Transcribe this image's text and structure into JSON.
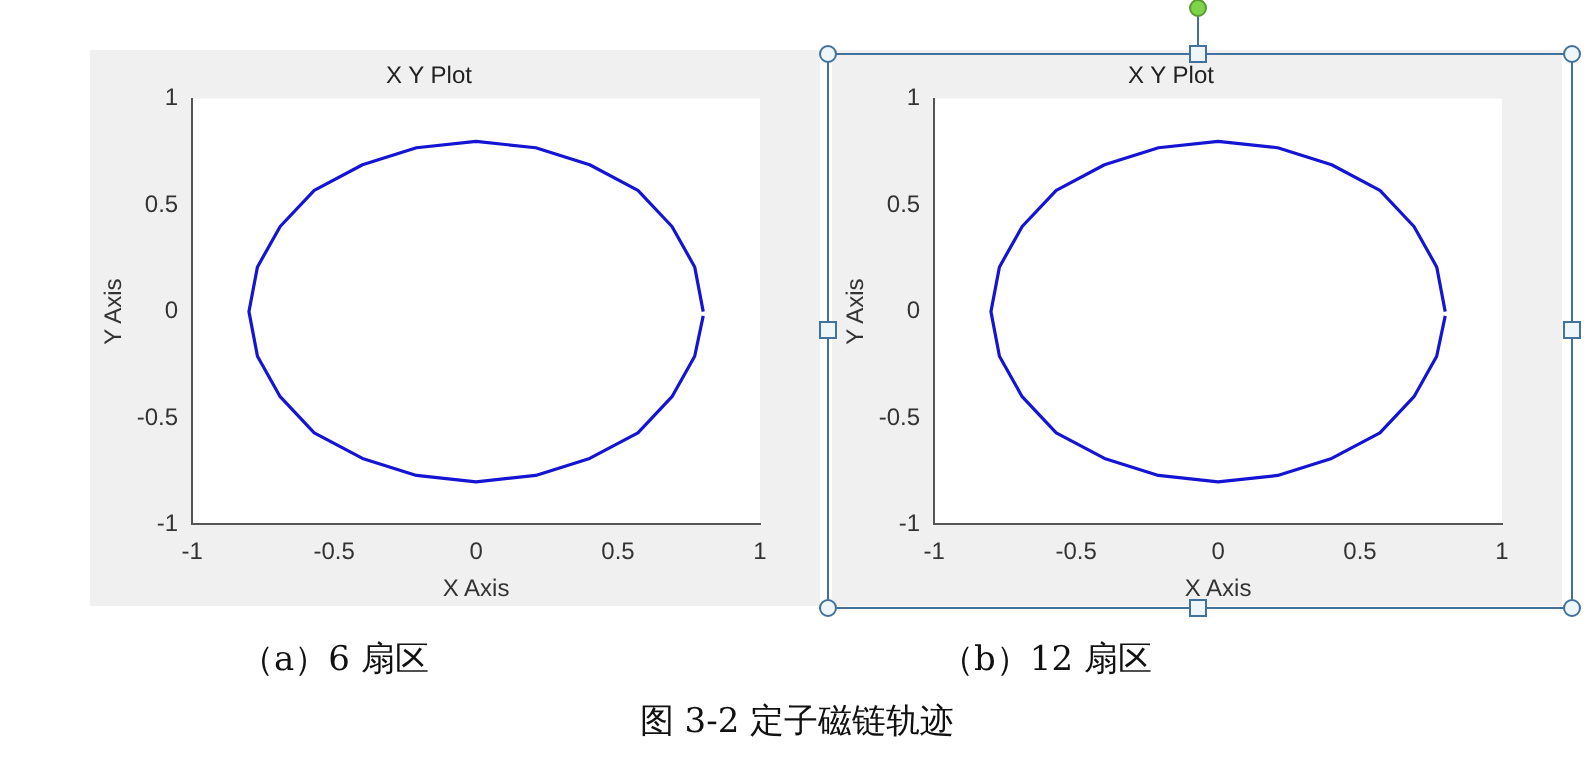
{
  "chart_data": [
    {
      "type": "line",
      "title": "X Y Plot",
      "xlabel": "X Axis",
      "ylabel": "Y Axis",
      "xlim": [
        -1,
        1
      ],
      "ylim": [
        -1,
        1
      ],
      "xticks": [
        -1,
        -0.5,
        0,
        0.5,
        1
      ],
      "yticks": [
        -1,
        -0.5,
        0,
        0.5,
        1
      ],
      "grid": false,
      "legend": false,
      "marker": "none",
      "line_style": "solid",
      "annotations": [
        "（a）6 扇区"
      ],
      "series": [
        {
          "color": "#1414d2",
          "x": [
            0.8,
            0.77,
            0.69,
            0.57,
            0.4,
            0.21,
            0,
            -0.21,
            -0.4,
            -0.57,
            -0.69,
            -0.77,
            -0.8,
            -0.77,
            -0.69,
            -0.57,
            -0.4,
            -0.21,
            0,
            0.21,
            0.4,
            0.57,
            0.69,
            0.77,
            0.8
          ],
          "values": [
            0,
            0.21,
            0.4,
            0.57,
            0.69,
            0.77,
            0.8,
            0.77,
            0.69,
            0.57,
            0.4,
            0.21,
            0,
            -0.21,
            -0.4,
            -0.57,
            -0.69,
            -0.77,
            -0.8,
            -0.77,
            -0.69,
            -0.57,
            -0.4,
            -0.21,
            -0.02
          ]
        }
      ]
    },
    {
      "type": "line",
      "title": "X Y Plot",
      "xlabel": "X Axis",
      "ylabel": "Y Axis",
      "xlim": [
        -1,
        1
      ],
      "ylim": [
        -1,
        1
      ],
      "xticks": [
        -1,
        -0.5,
        0,
        0.5,
        1
      ],
      "yticks": [
        -1,
        -0.5,
        0,
        0.5,
        1
      ],
      "grid": false,
      "legend": false,
      "marker": "none",
      "line_style": "solid",
      "annotations": [
        "（b）12 扇区",
        "图 3-2 定子磁链轨迹"
      ],
      "series": [
        {
          "color": "#1414d2",
          "x": [
            0.8,
            0.77,
            0.69,
            0.57,
            0.4,
            0.21,
            0,
            -0.21,
            -0.4,
            -0.57,
            -0.69,
            -0.77,
            -0.8,
            -0.77,
            -0.69,
            -0.57,
            -0.4,
            -0.21,
            0,
            0.21,
            0.4,
            0.57,
            0.69,
            0.77,
            0.8
          ],
          "values": [
            0,
            0.21,
            0.4,
            0.57,
            0.69,
            0.77,
            0.8,
            0.77,
            0.69,
            0.57,
            0.4,
            0.21,
            0,
            -0.21,
            -0.4,
            -0.57,
            -0.69,
            -0.77,
            -0.8,
            -0.77,
            -0.69,
            -0.57,
            -0.4,
            -0.21,
            -0.02
          ]
        }
      ]
    }
  ]
}
